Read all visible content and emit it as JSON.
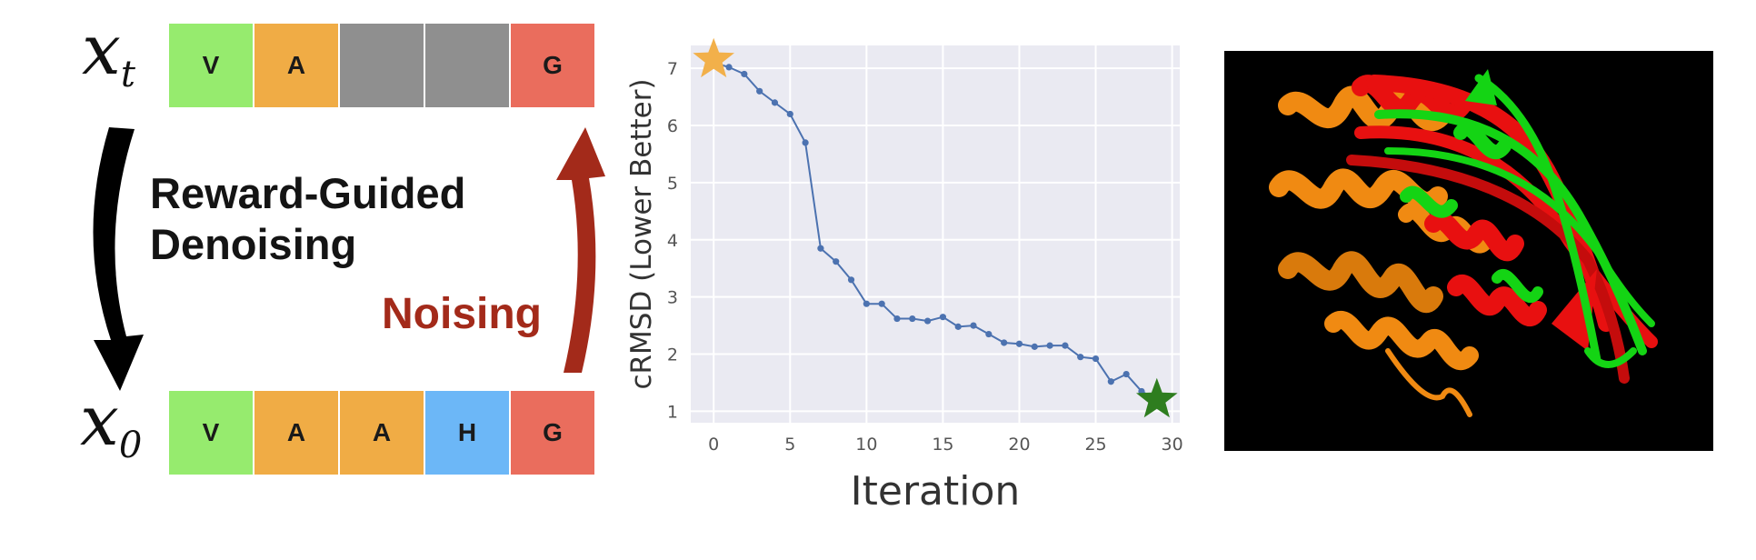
{
  "left_panel": {
    "xt_label": {
      "base": "x",
      "sub": "t"
    },
    "x0_label": {
      "base": "x",
      "sub": "0"
    },
    "seq_top": [
      {
        "letter": "V",
        "color": "#96eb6e"
      },
      {
        "letter": "A",
        "color": "#f0ac45"
      },
      {
        "letter": "",
        "color": "#8f8f8f"
      },
      {
        "letter": "",
        "color": "#8f8f8f"
      },
      {
        "letter": "G",
        "color": "#ea6d5d"
      }
    ],
    "seq_bottom": [
      {
        "letter": "V",
        "color": "#96eb6e"
      },
      {
        "letter": "A",
        "color": "#f0ac45"
      },
      {
        "letter": "A",
        "color": "#f0ac45"
      },
      {
        "letter": "H",
        "color": "#6cb7f7"
      },
      {
        "letter": "G",
        "color": "#ea6d5d"
      }
    ],
    "denoise_line1": "Reward-Guided",
    "denoise_line2": "Denoising",
    "noise_label": "Noising",
    "colors": {
      "denoise_arrow": "#000000",
      "noise_arrow": "#a32a1a"
    }
  },
  "chart_data": {
    "type": "line",
    "title": "",
    "xlabel": "Iteration",
    "ylabel": "cRMSD (Lower Better)",
    "xlim": [
      -1.5,
      30.5
    ],
    "ylim": [
      0.8,
      7.4
    ],
    "xticks": [
      0,
      5,
      10,
      15,
      20,
      25,
      30
    ],
    "yticks": [
      1,
      2,
      3,
      4,
      5,
      6,
      7
    ],
    "grid": true,
    "x": [
      0,
      1,
      2,
      3,
      4,
      5,
      6,
      7,
      8,
      9,
      10,
      11,
      12,
      13,
      14,
      15,
      16,
      17,
      18,
      19,
      20,
      21,
      22,
      23,
      24,
      25,
      26,
      27,
      28,
      29
    ],
    "series": [
      {
        "values": [
          7.1,
          7.02,
          6.9,
          6.6,
          6.4,
          6.2,
          5.7,
          3.85,
          3.62,
          3.3,
          2.88,
          2.88,
          2.62,
          2.62,
          2.58,
          2.65,
          2.48,
          2.5,
          2.35,
          2.2,
          2.18,
          2.13,
          2.15,
          2.15,
          1.95,
          1.92,
          1.52,
          1.65,
          1.35,
          1.2
        ]
      }
    ],
    "markers": [
      {
        "x": 0,
        "y": 7.15,
        "shape": "star",
        "color": "#f2b04a"
      },
      {
        "x": 29,
        "y": 1.2,
        "shape": "star",
        "color": "#2e7d1f"
      }
    ],
    "colors": {
      "line": "#4c72b0",
      "plot_bg": "#eaeaf2",
      "grid": "#ffffff"
    }
  },
  "protein_panel": {
    "colors": {
      "background": "#000000",
      "orange": "#f08a12",
      "red": "#e81010",
      "green": "#14d414"
    }
  }
}
